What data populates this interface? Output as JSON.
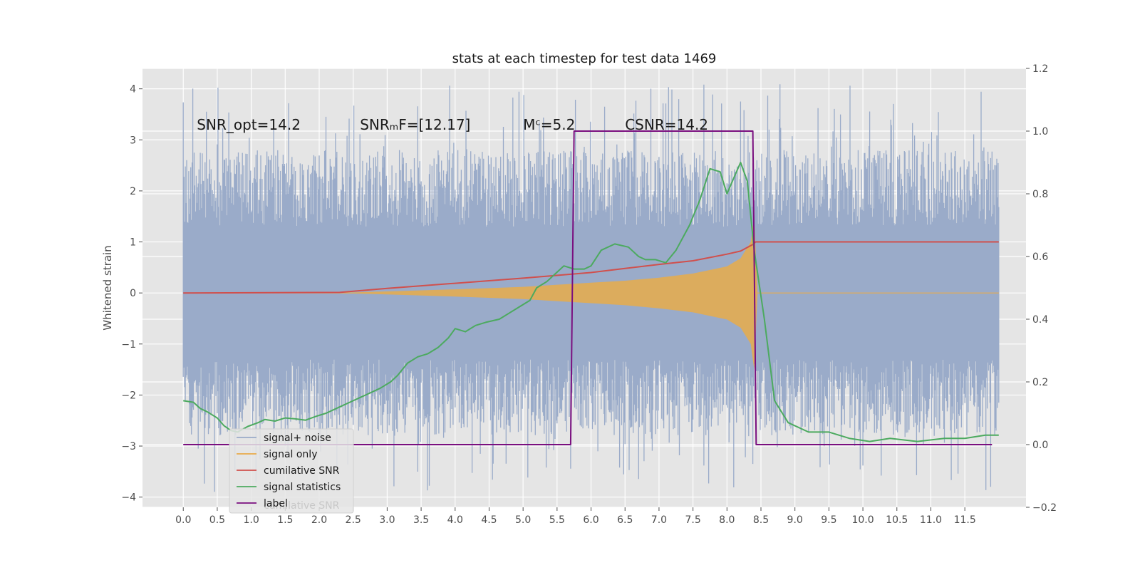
{
  "chart_data": {
    "type": "line",
    "title": "stats at each timestep for test data 1469",
    "ylabel": "Whitened strain",
    "xlabel": "",
    "xlim": [
      -0.6,
      12.4
    ],
    "ylim": [
      -4.2,
      4.4
    ],
    "y2lim": [
      -0.2,
      1.2
    ],
    "grid": true,
    "legend_placement": "lower-left",
    "x_ticks": [
      "0.0",
      "0.5",
      "1.0",
      "1.5",
      "2.0",
      "2.5",
      "3.0",
      "3.5",
      "4.0",
      "4.5",
      "5.0",
      "5.5",
      "6.0",
      "6.5",
      "7.0",
      "7.5",
      "8.0",
      "8.5",
      "9.0",
      "9.5",
      "10.0",
      "10.5",
      "11.0",
      "11.5"
    ],
    "y_ticks": [
      "4",
      "3",
      "2",
      "1",
      "0",
      "−1",
      "−2",
      "−3",
      "−4"
    ],
    "y2_ticks": [
      "1.2",
      "1.0",
      "0.8",
      "0.6",
      "0.4",
      "0.2",
      "0.0",
      "−0.2"
    ],
    "annotations": [
      {
        "text": "SNR_opt=14.2",
        "x": 0.2,
        "y": 3.2
      },
      {
        "text": "SNRₘF=[12.17]",
        "x": 2.6,
        "y": 3.2
      },
      {
        "text": "Mᶜ=5.2",
        "x": 5.0,
        "y": 3.2
      },
      {
        "text": "CSNR=14.2",
        "x": 6.5,
        "y": 3.2
      }
    ],
    "legend": [
      "signal+ noise",
      "signal only",
      "cumilative SNR",
      "signal statistics",
      "label"
    ],
    "legend_ghost_text": "cumilative SNR",
    "colors": {
      "noise": "#9aabc9",
      "signal": "#e8ab4a",
      "cumulative": "#d0504d",
      "statistics": "#4caa5f",
      "label": "#7a0f7f",
      "background": "#e5e5e5"
    },
    "series": [
      {
        "name": "signal+ noise",
        "axis": "left",
        "x_range": [
          0.0,
          12.0
        ],
        "envelope_core": [
          -1.2,
          1.2
        ],
        "typical_peaks": [
          2.8,
          -2.8
        ],
        "extreme_peaks": [
          4.1,
          -3.9
        ]
      },
      {
        "name": "signal only",
        "axis": "left",
        "x": [
          0.0,
          2.5,
          3.0,
          4.0,
          5.0,
          6.0,
          6.5,
          7.0,
          7.5,
          8.0,
          8.2,
          8.35,
          8.4,
          8.45,
          12.0
        ],
        "amplitude": [
          0.0,
          0.01,
          0.03,
          0.07,
          0.12,
          0.2,
          0.24,
          0.3,
          0.38,
          0.52,
          0.68,
          1.0,
          1.5,
          0.0,
          0.0
        ]
      },
      {
        "name": "cumilative SNR",
        "axis": "left",
        "x": [
          0.0,
          2.3,
          3.0,
          4.0,
          5.0,
          6.0,
          6.5,
          7.0,
          7.5,
          8.0,
          8.2,
          8.38,
          8.42,
          12.0
        ],
        "y": [
          0.0,
          0.01,
          0.09,
          0.19,
          0.29,
          0.4,
          0.48,
          0.56,
          0.63,
          0.76,
          0.82,
          0.95,
          1.0,
          1.0
        ]
      },
      {
        "name": "signal statistics",
        "axis": "right",
        "x": [
          0.0,
          0.15,
          0.25,
          0.35,
          0.5,
          0.6,
          0.7,
          0.8,
          0.95,
          1.1,
          1.2,
          1.35,
          1.5,
          1.65,
          1.8,
          1.95,
          2.1,
          2.3,
          2.5,
          2.7,
          2.9,
          3.05,
          3.15,
          3.3,
          3.45,
          3.6,
          3.75,
          3.9,
          4.0,
          4.15,
          4.3,
          4.45,
          4.65,
          4.8,
          4.95,
          5.1,
          5.2,
          5.35,
          5.5,
          5.6,
          5.75,
          5.9,
          6.0,
          6.15,
          6.35,
          6.55,
          6.7,
          6.8,
          6.95,
          7.1,
          7.25,
          7.45,
          7.6,
          7.75,
          7.9,
          8.0,
          8.1,
          8.2,
          8.3,
          8.4,
          8.55,
          8.7,
          8.9,
          9.2,
          9.5,
          9.8,
          10.1,
          10.4,
          10.8,
          11.2,
          11.5,
          11.8,
          12.0
        ],
        "y": [
          0.14,
          0.135,
          0.115,
          0.105,
          0.085,
          0.06,
          0.045,
          0.04,
          0.058,
          0.07,
          0.08,
          0.075,
          0.085,
          0.082,
          0.078,
          0.09,
          0.1,
          0.12,
          0.14,
          0.16,
          0.18,
          0.2,
          0.22,
          0.26,
          0.28,
          0.29,
          0.31,
          0.34,
          0.37,
          0.36,
          0.38,
          0.39,
          0.4,
          0.42,
          0.44,
          0.46,
          0.5,
          0.52,
          0.55,
          0.57,
          0.56,
          0.56,
          0.57,
          0.62,
          0.64,
          0.63,
          0.6,
          0.59,
          0.59,
          0.58,
          0.62,
          0.7,
          0.78,
          0.88,
          0.87,
          0.8,
          0.85,
          0.9,
          0.84,
          0.62,
          0.4,
          0.14,
          0.07,
          0.04,
          0.04,
          0.02,
          0.01,
          0.02,
          0.01,
          0.02,
          0.02,
          0.03,
          0.03
        ]
      },
      {
        "name": "label",
        "axis": "right",
        "x": [
          0.0,
          5.7,
          5.75,
          8.38,
          8.43,
          11.9
        ],
        "y": [
          0.0,
          0.0,
          1.0,
          1.0,
          0.0,
          0.0
        ]
      }
    ]
  }
}
